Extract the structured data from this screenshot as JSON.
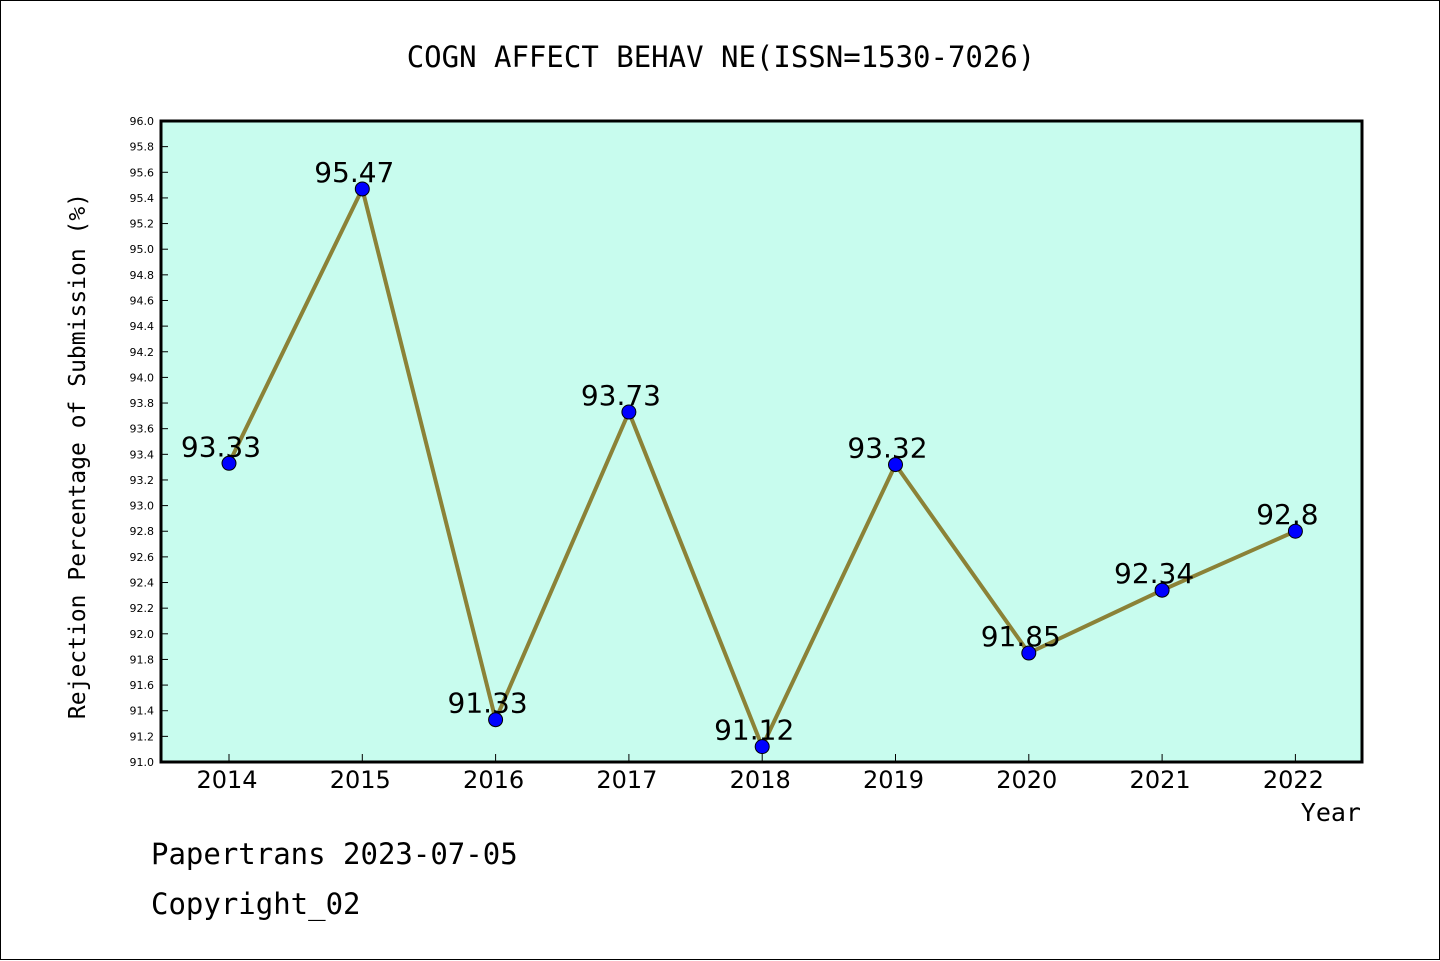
{
  "chart_data": {
    "type": "line",
    "title": "COGN AFFECT BEHAV NE(ISSN=1530-7026)",
    "xlabel": "Year",
    "ylabel": "Rejection Percentage of Submission (%)",
    "categories": [
      "2014",
      "2015",
      "2016",
      "2017",
      "2018",
      "2019",
      "2020",
      "2021",
      "2022"
    ],
    "series": [
      {
        "values": [
          93.33,
          95.47,
          91.33,
          93.73,
          91.12,
          93.32,
          91.85,
          92.34,
          92.8
        ],
        "labels": [
          "93.33",
          "95.47",
          "91.33",
          "93.73",
          "91.12",
          "93.32",
          "91.85",
          "92.34",
          "92.8"
        ]
      }
    ],
    "ylim": [
      91.0,
      96.0
    ],
    "ytick_step": 0.2,
    "grid": false,
    "colors": {
      "plot_background": "#c8fcee",
      "line": "#8b8237",
      "marker": "#0000ff"
    }
  },
  "footer": {
    "line1": "Papertrans 2023-07-05",
    "line2": "Copyright_02"
  }
}
